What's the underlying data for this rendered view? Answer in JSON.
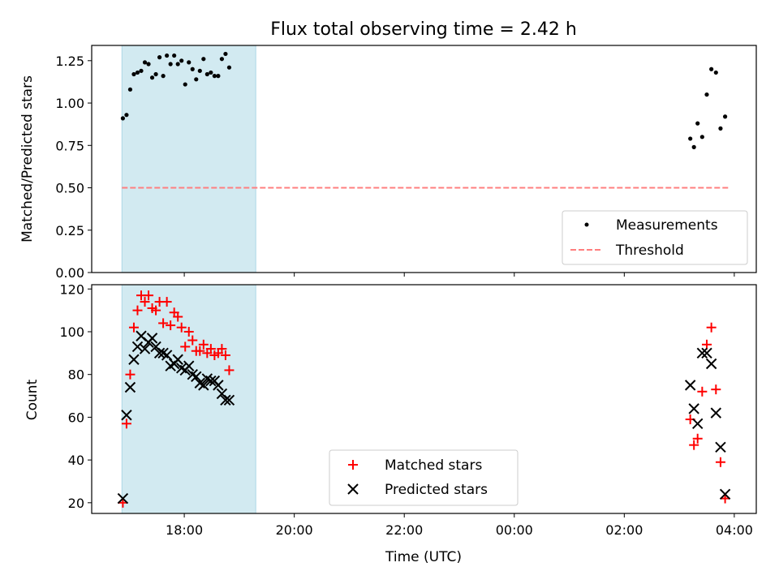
{
  "chart_data": [
    {
      "type": "scatter",
      "title": "Flux total observing time = 2.42 h",
      "xlabel": "",
      "ylabel": "Matched/Predicted stars",
      "ylim": [
        0,
        1.34
      ],
      "xlim": [
        "16:19",
        "04:24"
      ],
      "grid": false,
      "legend_position": "bottom-right",
      "y_ticks": [
        "0.00",
        "0.25",
        "0.50",
        "0.75",
        "1.00",
        "1.25"
      ],
      "highlight_span": {
        "start": "16:52",
        "end": "19:18",
        "color": "#add8e6"
      },
      "threshold": {
        "name": "Threshold",
        "value": 0.5,
        "start": "16:52",
        "end": "03:55",
        "color": "#ff7f7f"
      },
      "series": [
        {
          "name": "Measurements",
          "color": "#000000",
          "x": [
            "16:53",
            "16:57",
            "17:01",
            "17:05",
            "17:09",
            "17:13",
            "17:17",
            "17:21",
            "17:25",
            "17:29",
            "17:33",
            "17:37",
            "17:41",
            "17:45",
            "17:49",
            "17:53",
            "17:57",
            "18:01",
            "18:05",
            "18:09",
            "18:13",
            "18:17",
            "18:21",
            "18:25",
            "18:29",
            "18:33",
            "18:37",
            "18:41",
            "18:45",
            "18:49",
            "18:53",
            "18:57",
            "19:01",
            "19:05",
            "19:09",
            "19:13",
            "03:12",
            "03:16",
            "03:20",
            "03:25",
            "03:30",
            "03:35",
            "03:40",
            "03:45",
            "03:50"
          ],
          "y": [
            0.91,
            0.93,
            1.08,
            1.17,
            1.18,
            1.19,
            1.24,
            1.23,
            1.15,
            1.17,
            1.27,
            1.16,
            1.28,
            1.23,
            1.28,
            1.23,
            1.25,
            1.11,
            1.24,
            1.2,
            1.14,
            1.19,
            1.26,
            1.17,
            1.18,
            1.16,
            1.16,
            1.26,
            1.29,
            1.21,
            null,
            null,
            null,
            null,
            null,
            null,
            0.79,
            0.74,
            0.88,
            0.8,
            1.05,
            1.2,
            1.18,
            0.85,
            0.92
          ]
        }
      ]
    },
    {
      "type": "scatter",
      "xlabel": "Time (UTC)",
      "ylabel": "Count",
      "ylim": [
        15,
        122
      ],
      "xlim": [
        "16:19",
        "04:24"
      ],
      "grid": false,
      "legend_position": "bottom-center",
      "x_ticks": [
        "18:00",
        "20:00",
        "22:00",
        "00:00",
        "02:00",
        "04:00"
      ],
      "y_ticks": [
        "20",
        "40",
        "60",
        "80",
        "100",
        "120"
      ],
      "highlight_span": {
        "start": "16:52",
        "end": "19:18",
        "color": "#add8e6"
      },
      "series": [
        {
          "name": "Matched stars",
          "marker": "+",
          "color": "#ff0000",
          "x": [
            "16:53",
            "16:57",
            "17:01",
            "17:05",
            "17:09",
            "17:13",
            "17:17",
            "17:21",
            "17:25",
            "17:29",
            "17:33",
            "17:37",
            "17:41",
            "17:45",
            "17:49",
            "17:53",
            "17:57",
            "18:01",
            "18:05",
            "18:09",
            "18:13",
            "18:17",
            "18:21",
            "18:25",
            "18:29",
            "18:33",
            "18:37",
            "18:41",
            "18:45",
            "18:49",
            "18:53",
            "18:57",
            "19:01",
            "19:05",
            "19:09",
            "19:13",
            "03:12",
            "03:16",
            "03:20",
            "03:25",
            "03:30",
            "03:35",
            "03:40",
            "03:45",
            "03:50"
          ],
          "y": [
            20,
            57,
            80,
            102,
            110,
            117,
            114,
            117,
            111,
            110,
            114,
            104,
            114,
            103,
            109,
            107,
            102,
            93,
            100,
            96,
            91,
            91,
            94,
            90,
            92,
            89,
            90,
            92,
            89,
            82,
            null,
            null,
            null,
            null,
            null,
            null,
            59,
            47,
            50,
            72,
            94,
            102,
            73,
            39,
            22
          ]
        },
        {
          "name": "Predicted stars",
          "marker": "x",
          "color": "#000000",
          "x": [
            "16:53",
            "16:57",
            "17:01",
            "17:05",
            "17:09",
            "17:13",
            "17:17",
            "17:21",
            "17:25",
            "17:29",
            "17:33",
            "17:37",
            "17:41",
            "17:45",
            "17:49",
            "17:53",
            "17:57",
            "18:01",
            "18:05",
            "18:09",
            "18:13",
            "18:17",
            "18:21",
            "18:25",
            "18:29",
            "18:33",
            "18:37",
            "18:41",
            "18:45",
            "18:49",
            "18:53",
            "18:57",
            "19:01",
            "19:05",
            "19:09",
            "19:13",
            "03:12",
            "03:16",
            "03:20",
            "03:25",
            "03:30",
            "03:35",
            "03:40",
            "03:45",
            "03:50"
          ],
          "y": [
            22,
            61,
            74,
            87,
            93,
            98,
            92,
            95,
            97,
            93,
            90,
            90,
            89,
            84,
            85,
            87,
            83,
            82,
            84,
            80,
            79,
            76,
            75,
            78,
            77,
            77,
            75,
            71,
            68,
            68,
            null,
            null,
            null,
            null,
            null,
            null,
            75,
            64,
            57,
            90,
            90,
            85,
            62,
            46,
            24
          ]
        }
      ]
    }
  ]
}
